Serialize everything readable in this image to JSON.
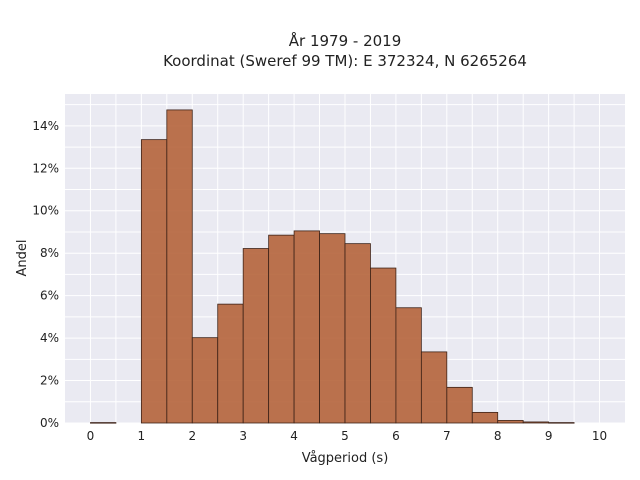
{
  "chart_data": {
    "type": "bar",
    "title_lines": [
      "År 1979 - 2019",
      "Koordinat (Sweref 99 TM): E 372324, N 6265264"
    ],
    "xlabel": "Vågperiod (s)",
    "ylabel": "Andel",
    "xlim": [
      -0.5,
      10.5
    ],
    "ylim": [
      0,
      15.5
    ],
    "x_ticks": [
      0,
      1,
      2,
      3,
      4,
      5,
      6,
      7,
      8,
      9,
      10
    ],
    "y_ticks": [
      0,
      2,
      4,
      6,
      8,
      10,
      12,
      14
    ],
    "y_tick_labels": [
      "0%",
      "2%",
      "4%",
      "6%",
      "8%",
      "10%",
      "12%",
      "14%"
    ],
    "bin_width": 0.5,
    "bins": [
      {
        "start": 0.0,
        "value": 0.02
      },
      {
        "start": 0.5,
        "value": 0.0
      },
      {
        "start": 1.0,
        "value": 13.35
      },
      {
        "start": 1.5,
        "value": 14.75
      },
      {
        "start": 2.0,
        "value": 4.02
      },
      {
        "start": 2.5,
        "value": 5.6
      },
      {
        "start": 3.0,
        "value": 8.22
      },
      {
        "start": 3.5,
        "value": 8.85
      },
      {
        "start": 4.0,
        "value": 9.05
      },
      {
        "start": 4.5,
        "value": 8.92
      },
      {
        "start": 5.0,
        "value": 8.45
      },
      {
        "start": 5.5,
        "value": 7.3
      },
      {
        "start": 6.0,
        "value": 5.43
      },
      {
        "start": 6.5,
        "value": 3.35
      },
      {
        "start": 7.0,
        "value": 1.68
      },
      {
        "start": 7.5,
        "value": 0.5
      },
      {
        "start": 8.0,
        "value": 0.12
      },
      {
        "start": 8.5,
        "value": 0.05
      },
      {
        "start": 9.0,
        "value": 0.02
      }
    ],
    "grid": true,
    "colors": {
      "bar_fill": "#b5643b",
      "bar_stroke": "#3d2217",
      "plot_bg": "#eaeaf2",
      "grid": "#ffffff"
    }
  }
}
